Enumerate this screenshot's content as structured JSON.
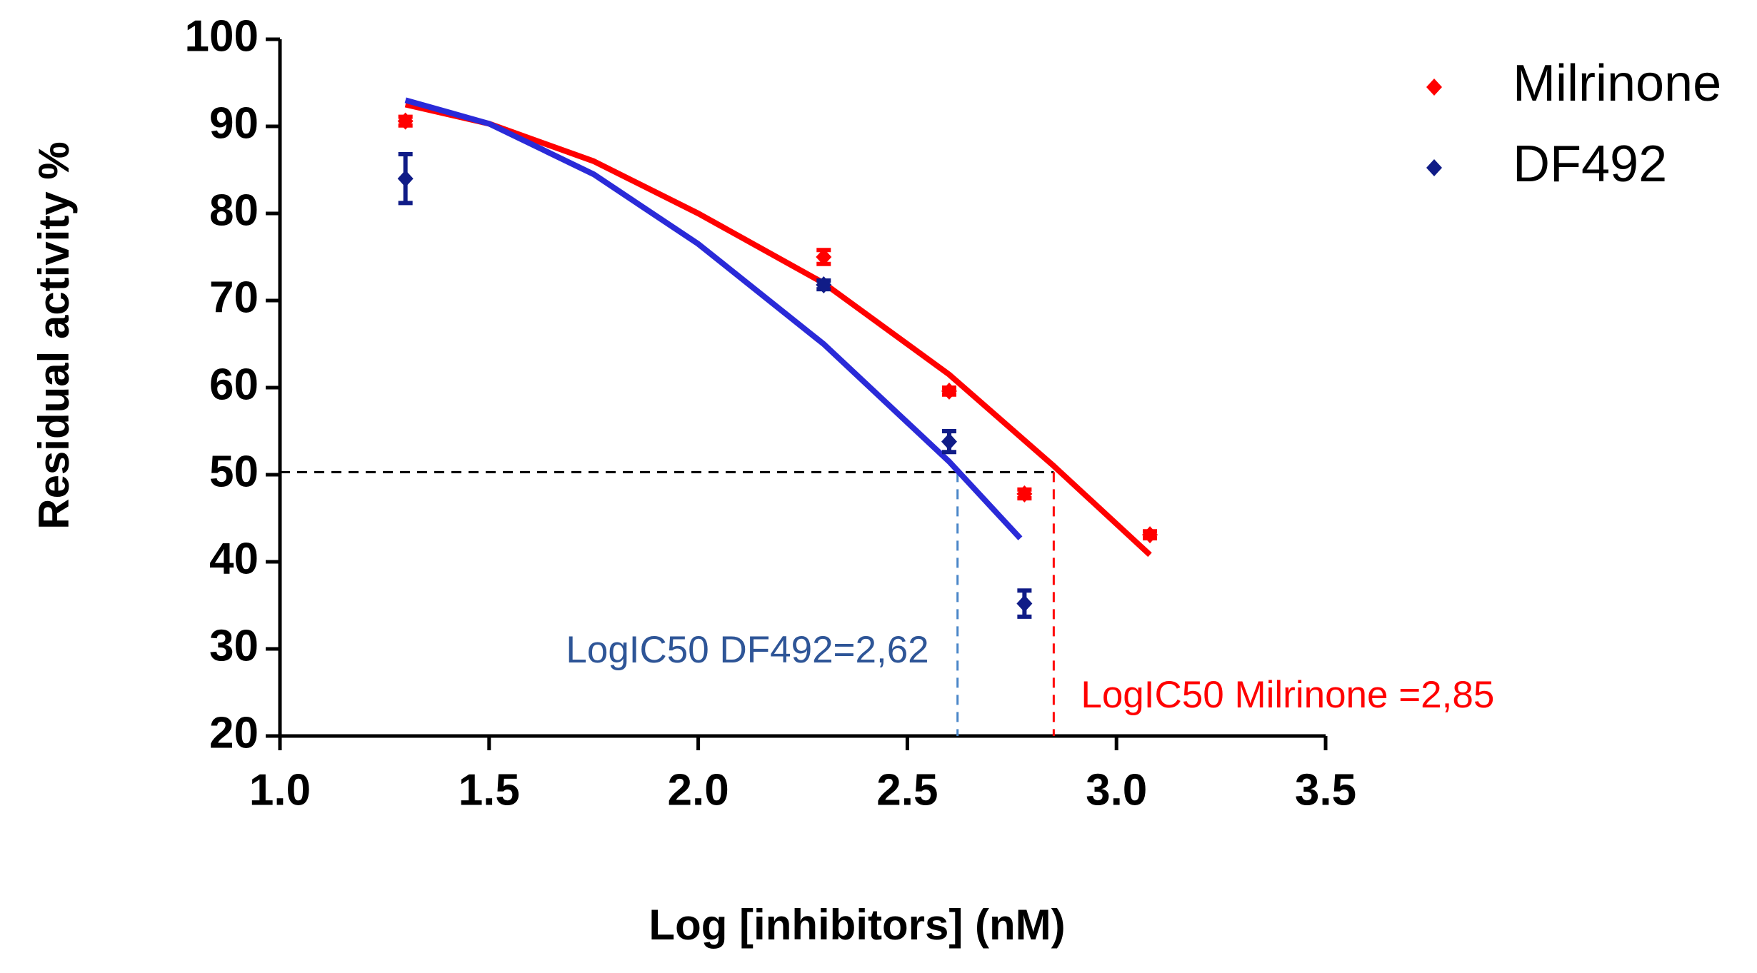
{
  "chart_data": {
    "type": "scatter",
    "xlabel": "Log [inhibitors] (nM)",
    "ylabel": "Residual activity %",
    "xlim": [
      1.0,
      3.5
    ],
    "ylim": [
      20,
      100
    ],
    "xticks": [
      {
        "value": 1.0,
        "label": "1.0"
      },
      1.5,
      {
        "value": 2.0,
        "label": "2.0"
      },
      2.5,
      {
        "value": 3.0,
        "label": "3.0"
      },
      3.5
    ],
    "yticks": [
      20,
      30,
      40,
      50,
      60,
      70,
      80,
      90,
      100
    ],
    "legend": "upper right",
    "threshold": 50.3,
    "series": [
      {
        "name": "Milrinone",
        "color": "#ff0000",
        "fit_color": "#ff0000",
        "x": [
          1.3,
          2.3,
          2.6,
          2.78,
          3.08
        ],
        "values": [
          90.6,
          75.0,
          59.6,
          47.8,
          43.1
        ],
        "errors": [
          0.5,
          0.8,
          0.4,
          0.5,
          0.4
        ],
        "fit_x": [
          1.3,
          1.5,
          1.75,
          2.0,
          2.3,
          2.6,
          2.85,
          3.08
        ],
        "fit_y": [
          92.5,
          90.3,
          86.0,
          80.0,
          72.0,
          61.5,
          51.0,
          40.8
        ]
      },
      {
        "name": "DF492",
        "color": "#101c87",
        "fit_color": "#2a2ad8",
        "x": [
          1.3,
          2.3,
          2.6,
          2.78
        ],
        "values": [
          84.0,
          71.8,
          53.8,
          35.2
        ],
        "errors": [
          2.8,
          0.5,
          1.2,
          1.5
        ],
        "fit_x": [
          1.3,
          1.5,
          1.75,
          2.0,
          2.3,
          2.6,
          2.77
        ],
        "fit_y": [
          93.0,
          90.3,
          84.5,
          76.5,
          65.0,
          51.5,
          42.7
        ]
      }
    ],
    "annotations": [
      {
        "text": "LogIC50 DF492=2,62",
        "x": 2.62,
        "color": "#2e5597",
        "line_color": "#4a86c8"
      },
      {
        "text": "LogIC50 Milrinone =2,85",
        "x": 2.85,
        "color": "#ff0000",
        "line_color": "#ff0000"
      }
    ]
  }
}
